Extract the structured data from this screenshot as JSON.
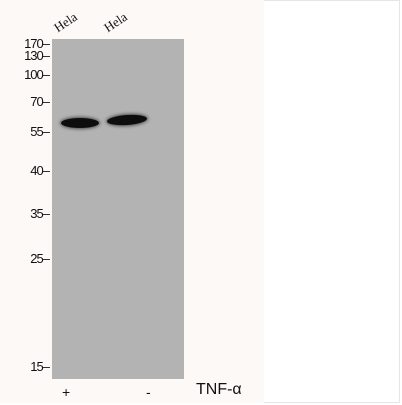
{
  "lanes": [
    {
      "label": "Hela",
      "condition": "+"
    },
    {
      "label": "Hela",
      "condition": "-"
    }
  ],
  "treatment": "TNF-α",
  "markers": [
    "170",
    "130",
    "100",
    "70",
    "55",
    "40",
    "35",
    "25",
    "15"
  ],
  "colors": {
    "membrane": "#b3b3b3",
    "band": "#0d0d0d",
    "background_tint": "#fdf9f7"
  }
}
